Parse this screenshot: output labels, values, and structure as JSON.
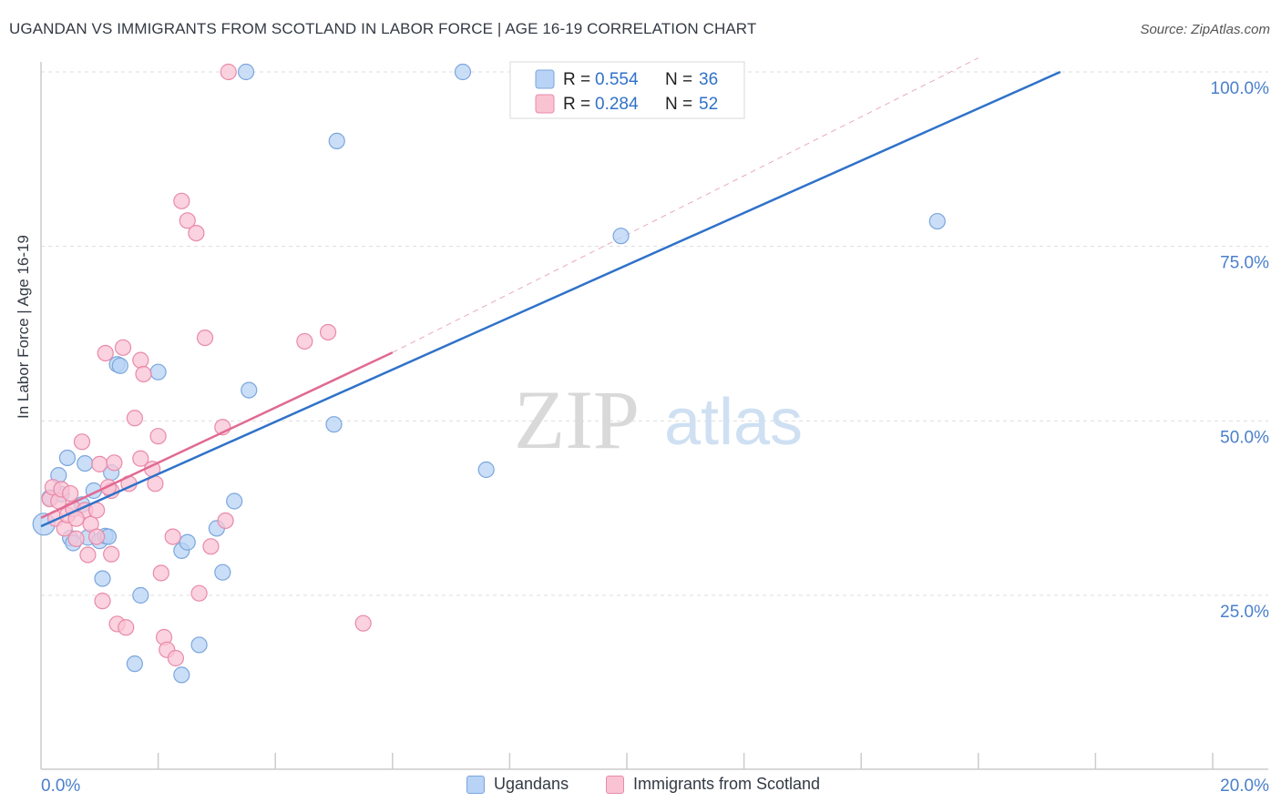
{
  "title": "UGANDAN VS IMMIGRANTS FROM SCOTLAND IN LABOR FORCE | AGE 16-19 CORRELATION CHART",
  "source": "Source: ZipAtlas.com",
  "watermark": {
    "zip": "ZIP",
    "atlas": "atlas"
  },
  "colors": {
    "blue_fill": "#b8d3f5",
    "blue_stroke": "#7aa6dc",
    "blue_line": "#2f72c9",
    "pink_fill": "#f9c3d4",
    "pink_stroke": "#e98aa8",
    "pink_line": "#e06a93",
    "axis_text": "#4a7fcc",
    "grid": "#dddddd"
  },
  "legend_top": [
    {
      "series": "Ugandans",
      "r_label": "R =",
      "r_value": "0.554",
      "n_label": "N =",
      "n_value": "36"
    },
    {
      "series": "Immigrants from Scotland",
      "r_label": "R =",
      "r_value": "0.284",
      "n_label": "N =",
      "n_value": "52"
    }
  ],
  "legend_bottom": [
    "Ugandans",
    "Immigrants from Scotland"
  ],
  "chart_data": {
    "type": "scatter",
    "title": "UGANDAN VS IMMIGRANTS FROM SCOTLAND IN LABOR FORCE | AGE 16-19 CORRELATION CHART",
    "xlabel": "",
    "ylabel": "In Labor Force | Age 16-19",
    "xlim": [
      0,
      20
    ],
    "ylim": [
      0,
      102.5
    ],
    "x_tick_labels": [
      "0.0%",
      "20.0%"
    ],
    "y_ticks": [
      25,
      50,
      75,
      100
    ],
    "y_tick_labels": [
      "25.0%",
      "50.0%",
      "75.0%",
      "100.0%"
    ],
    "series": [
      {
        "name": "Ugandans",
        "points": [
          [
            0.05,
            35.2
          ],
          [
            0.15,
            39.0
          ],
          [
            0.3,
            42.2
          ],
          [
            0.35,
            39.5
          ],
          [
            0.45,
            44.7
          ],
          [
            0.5,
            33.2
          ],
          [
            0.55,
            32.5
          ],
          [
            0.7,
            38.0
          ],
          [
            0.75,
            43.9
          ],
          [
            0.8,
            33.3
          ],
          [
            0.9,
            40.0
          ],
          [
            1.0,
            32.8
          ],
          [
            1.05,
            27.4
          ],
          [
            1.1,
            33.5
          ],
          [
            1.15,
            33.4
          ],
          [
            1.2,
            42.6
          ],
          [
            1.3,
            58.1
          ],
          [
            1.35,
            57.9
          ],
          [
            1.6,
            15.2
          ],
          [
            1.7,
            25.0
          ],
          [
            2.0,
            57.0
          ],
          [
            2.4,
            31.4
          ],
          [
            2.4,
            13.6
          ],
          [
            2.5,
            32.6
          ],
          [
            2.7,
            17.9
          ],
          [
            3.0,
            34.6
          ],
          [
            3.1,
            28.3
          ],
          [
            3.3,
            38.5
          ],
          [
            3.5,
            100.0
          ],
          [
            3.55,
            54.4
          ],
          [
            5.0,
            49.5
          ],
          [
            5.05,
            90.1
          ],
          [
            7.2,
            100.0
          ],
          [
            7.6,
            43.0
          ],
          [
            9.9,
            76.5
          ],
          [
            15.3,
            78.6
          ]
        ],
        "trend": {
          "x": [
            0.0,
            17.4
          ],
          "y": [
            34.9,
            100.0
          ]
        }
      },
      {
        "name": "Immigrants from Scotland",
        "points": [
          [
            0.15,
            38.8
          ],
          [
            0.2,
            40.5
          ],
          [
            0.25,
            36.0
          ],
          [
            0.3,
            38.5
          ],
          [
            0.35,
            40.2
          ],
          [
            0.4,
            34.6
          ],
          [
            0.45,
            36.5
          ],
          [
            0.5,
            39.6
          ],
          [
            0.55,
            37.4
          ],
          [
            0.6,
            33.1
          ],
          [
            0.7,
            47.0
          ],
          [
            0.75,
            37.2
          ],
          [
            0.8,
            30.8
          ],
          [
            0.85,
            35.2
          ],
          [
            0.95,
            33.4
          ],
          [
            0.95,
            37.2
          ],
          [
            1.0,
            43.8
          ],
          [
            1.05,
            24.2
          ],
          [
            1.1,
            59.7
          ],
          [
            1.2,
            40.0
          ],
          [
            1.2,
            30.9
          ],
          [
            1.25,
            44.0
          ],
          [
            1.3,
            20.9
          ],
          [
            1.4,
            60.5
          ],
          [
            1.45,
            20.4
          ],
          [
            1.5,
            41.0
          ],
          [
            1.6,
            50.4
          ],
          [
            1.7,
            58.7
          ],
          [
            1.75,
            56.7
          ],
          [
            1.7,
            44.6
          ],
          [
            1.9,
            43.1
          ],
          [
            1.95,
            41.0
          ],
          [
            2.0,
            47.8
          ],
          [
            2.05,
            28.2
          ],
          [
            2.1,
            19.0
          ],
          [
            2.15,
            17.2
          ],
          [
            2.25,
            33.4
          ],
          [
            2.3,
            16.0
          ],
          [
            2.4,
            81.5
          ],
          [
            2.5,
            78.7
          ],
          [
            2.65,
            76.9
          ],
          [
            2.7,
            25.3
          ],
          [
            2.8,
            61.9
          ],
          [
            2.9,
            32.0
          ],
          [
            3.1,
            49.1
          ],
          [
            3.15,
            35.7
          ],
          [
            3.2,
            100.0
          ],
          [
            4.5,
            61.4
          ],
          [
            4.9,
            62.7
          ],
          [
            5.5,
            21.0
          ],
          [
            1.15,
            40.5
          ],
          [
            0.6,
            36.0
          ]
        ],
        "trend": {
          "x": [
            0.0,
            6.0
          ],
          "y": [
            36.1,
            59.8
          ]
        },
        "trend_extension": {
          "x": [
            6.0,
            16.0
          ],
          "y": [
            59.8,
            102.0
          ]
        }
      }
    ]
  }
}
